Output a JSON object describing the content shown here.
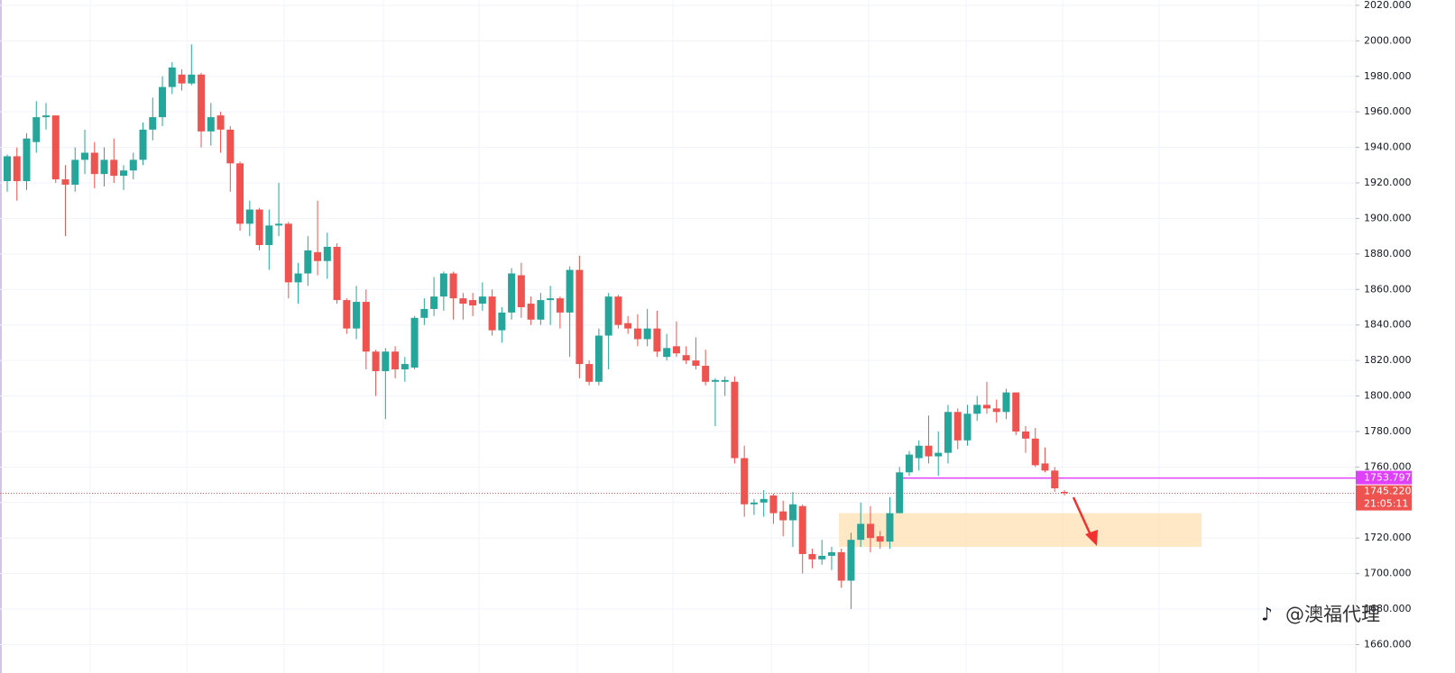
{
  "chart_data": {
    "type": "candlestick",
    "up_color": "#26a69a",
    "down_color": "#ef5350",
    "open": [
      1921,
      1935,
      1921,
      1943,
      1957,
      1958,
      1922,
      1919,
      1933,
      1937,
      1925,
      1933,
      1924,
      1927,
      1933,
      1950,
      1957,
      1974,
      1981,
      1976,
      1981,
      1949,
      1958,
      1950,
      1931,
      1897,
      1905,
      1885,
      1896,
      1897,
      1864,
      1869,
      1881,
      1876,
      1884,
      1854,
      1838,
      1853,
      1825,
      1814,
      1825,
      1815,
      1816,
      1844,
      1849,
      1856,
      1869,
      1855,
      1854,
      1852,
      1856,
      1837,
      1847,
      1868,
      1852,
      1843,
      1854,
      1855,
      1847,
      1871,
      1818,
      1808,
      1834,
      1856,
      1841,
      1838,
      1832,
      1838,
      1822,
      1828,
      1823,
      1820,
      1817,
      1808,
      1808,
      1808,
      1765,
      1739,
      1740,
      1744,
      1735,
      1730,
      1738,
      1711,
      1708,
      1710,
      1712,
      1696,
      1719,
      1728,
      1721,
      1718,
      1734,
      1757,
      1765,
      1772,
      1766,
      1768,
      1791,
      1775,
      1790,
      1795,
      1793,
      1791,
      1802,
      1780,
      1776,
      1762,
      1758,
      1746
    ],
    "high": [
      1936,
      1940,
      1948,
      1966,
      1965,
      1958,
      1930,
      1940,
      1950,
      1943,
      1940,
      1945,
      1930,
      1937,
      1954,
      1968,
      1980,
      1988,
      1984,
      1998,
      1982,
      1965,
      1960,
      1952,
      1932,
      1910,
      1906,
      1905,
      1920,
      1898,
      1875,
      1890,
      1910,
      1892,
      1886,
      1855,
      1862,
      1860,
      1826,
      1827,
      1828,
      1822,
      1845,
      1855,
      1867,
      1870,
      1870,
      1858,
      1858,
      1864,
      1860,
      1850,
      1872,
      1875,
      1856,
      1858,
      1862,
      1856,
      1873,
      1879,
      1820,
      1838,
      1858,
      1857,
      1845,
      1846,
      1849,
      1848,
      1835,
      1842,
      1828,
      1833,
      1826,
      1810,
      1811,
      1811,
      1772,
      1742,
      1747,
      1745,
      1741,
      1746,
      1739,
      1714,
      1719,
      1715,
      1714,
      1723,
      1740,
      1738,
      1724,
      1743,
      1760,
      1769,
      1775,
      1789,
      1780,
      1795,
      1793,
      1795,
      1800,
      1808,
      1798,
      1804,
      1802,
      1783,
      1782,
      1771,
      1760,
      1747
    ],
    "low": [
      1915,
      1910,
      1916,
      1937,
      1950,
      1920,
      1890,
      1915,
      1925,
      1917,
      1918,
      1920,
      1916,
      1922,
      1930,
      1944,
      1952,
      1970,
      1972,
      1975,
      1940,
      1941,
      1937,
      1915,
      1893,
      1890,
      1882,
      1871,
      1890,
      1855,
      1852,
      1862,
      1868,
      1866,
      1852,
      1835,
      1832,
      1815,
      1800,
      1787,
      1810,
      1808,
      1815,
      1840,
      1845,
      1848,
      1843,
      1843,
      1845,
      1848,
      1834,
      1830,
      1843,
      1844,
      1840,
      1840,
      1840,
      1838,
      1822,
      1810,
      1806,
      1806,
      1815,
      1838,
      1835,
      1828,
      1828,
      1822,
      1820,
      1822,
      1818,
      1815,
      1806,
      1783,
      1800,
      1762,
      1732,
      1733,
      1732,
      1728,
      1721,
      1715,
      1700,
      1703,
      1705,
      1702,
      1692,
      1680,
      1715,
      1712,
      1714,
      1714,
      1734,
      1755,
      1758,
      1762,
      1755,
      1762,
      1770,
      1772,
      1786,
      1790,
      1785,
      1787,
      1778,
      1768,
      1760,
      1757,
      1746,
      1744
    ],
    "close": [
      1935,
      1921,
      1945,
      1957,
      1958,
      1922,
      1919,
      1933,
      1937,
      1925,
      1933,
      1924,
      1927,
      1933,
      1950,
      1957,
      1974,
      1985,
      1976,
      1981,
      1949,
      1957,
      1950,
      1931,
      1897,
      1905,
      1885,
      1896,
      1897,
      1864,
      1869,
      1882,
      1876,
      1884,
      1854,
      1838,
      1853,
      1825,
      1814,
      1825,
      1815,
      1818,
      1844,
      1849,
      1856,
      1869,
      1855,
      1852,
      1851,
      1856,
      1837,
      1847,
      1869,
      1850,
      1843,
      1854,
      1855,
      1847,
      1871,
      1818,
      1808,
      1834,
      1856,
      1840,
      1838,
      1832,
      1838,
      1825,
      1827,
      1824,
      1820,
      1817,
      1808,
      1809,
      1809,
      1765,
      1739,
      1740,
      1742,
      1734,
      1730,
      1739,
      1711,
      1708,
      1710,
      1712,
      1696,
      1719,
      1728,
      1720,
      1718,
      1734,
      1757,
      1767,
      1772,
      1766,
      1768,
      1791,
      1775,
      1790,
      1795,
      1793,
      1791,
      1802,
      1780,
      1776,
      1761,
      1758,
      1748,
      1745.22
    ],
    "ylim": [
      1644,
      2023
    ],
    "yticks": [
      {
        "value": 1660,
        "label": "1660.000"
      },
      {
        "value": 1680,
        "label": "1680.000"
      },
      {
        "value": 1700,
        "label": "1700.000"
      },
      {
        "value": 1720,
        "label": "1720.000"
      },
      {
        "value": 1740,
        "label": "1740.000"
      },
      {
        "value": 1760,
        "label": "1760.000"
      },
      {
        "value": 1780,
        "label": "1780.000"
      },
      {
        "value": 1800,
        "label": "1800.000"
      },
      {
        "value": 1820,
        "label": "1820.000"
      },
      {
        "value": 1840,
        "label": "1840.000"
      },
      {
        "value": 1860,
        "label": "1860.000"
      },
      {
        "value": 1880,
        "label": "1880.000"
      },
      {
        "value": 1900,
        "label": "1900.000"
      },
      {
        "value": 1920,
        "label": "1920.000"
      },
      {
        "value": 1940,
        "label": "1940.000"
      },
      {
        "value": 1960,
        "label": "1960.000"
      },
      {
        "value": 1980,
        "label": "1980.000"
      },
      {
        "value": 2000,
        "label": "2000.000"
      },
      {
        "value": 2020,
        "label": "2020.000"
      }
    ],
    "grid": true,
    "level": {
      "value": 1753.797,
      "label": "1753.797",
      "color": "#e040fb"
    },
    "current_price": {
      "value": 1745.22,
      "label": "1745.220",
      "countdown": "21:05:11",
      "color": "#ef5350"
    },
    "zone": {
      "top": 1734,
      "bottom": 1715,
      "color": "#ffe0b2"
    },
    "watermark": "@澳福代理"
  }
}
